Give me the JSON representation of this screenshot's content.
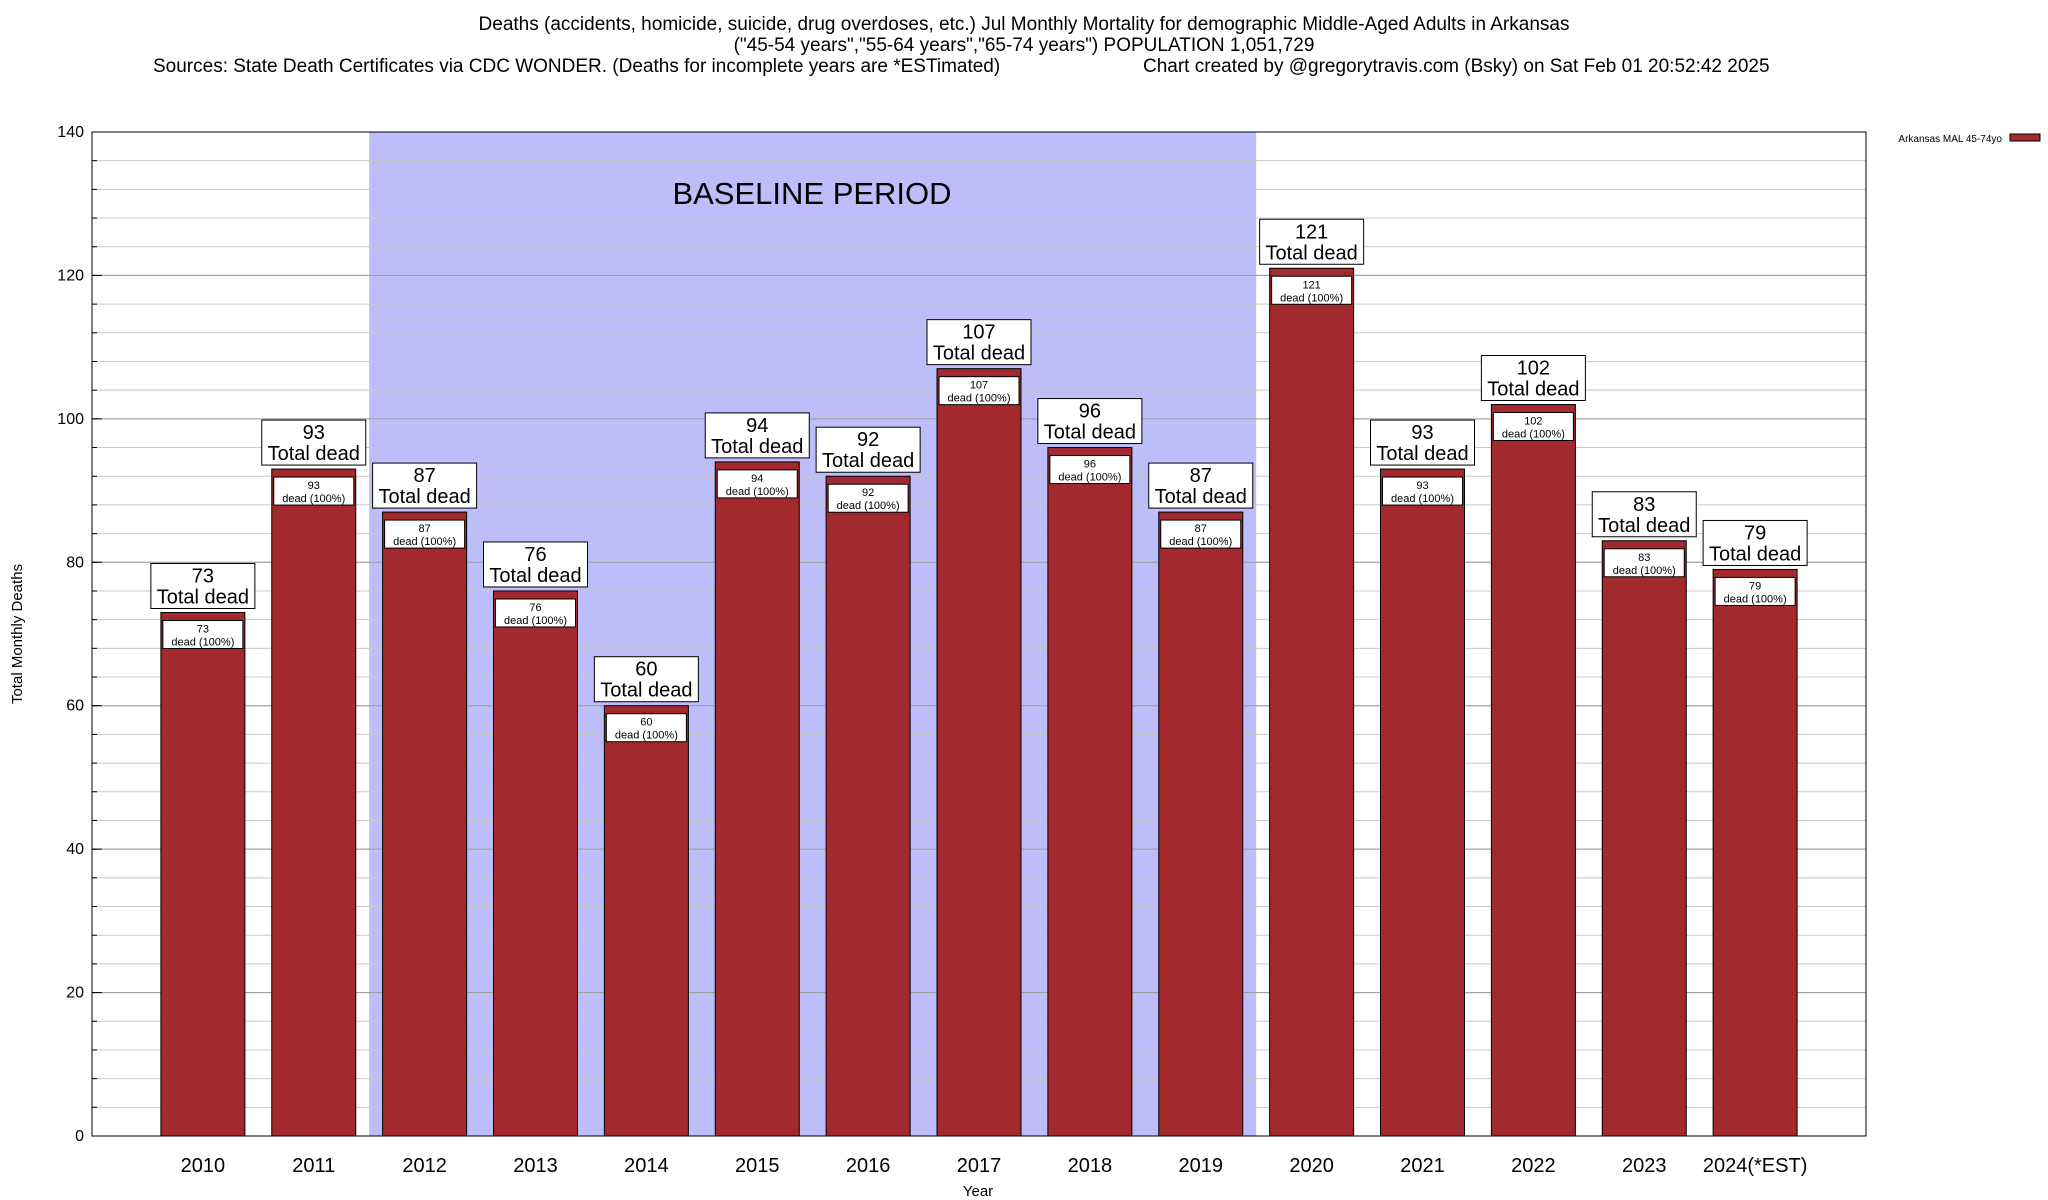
{
  "chart_data": {
    "type": "bar",
    "title": "Deaths (accidents, homicide, suicide, drug overdoses, etc.) Jul Monthly Mortality for demographic Middle-Aged Adults in Arkansas",
    "subtitle": "(\"45-54 years\",\"55-64 years\",\"65-74 years\") POPULATION 1,051,729",
    "source": "Sources: State Death Certificates via CDC WONDER. (Deaths for incomplete years are *ESTimated)",
    "credit": "Chart created by @gregorytravis.com (Bsky) on Sat Feb 01 20:52:42 2025",
    "xlabel": "Year",
    "ylabel": "Total Monthly Deaths",
    "ylim": [
      0,
      140
    ],
    "y_major_ticks": [
      0,
      20,
      40,
      60,
      80,
      100,
      120,
      140
    ],
    "y_minor_step": 4,
    "categories": [
      "2010",
      "2011",
      "2012",
      "2013",
      "2014",
      "2015",
      "2016",
      "2017",
      "2018",
      "2019",
      "2020",
      "2021",
      "2022",
      "2023",
      "2024(*EST)"
    ],
    "series": [
      {
        "name": "Arkansas MAL 45-74yo",
        "color": "#a2292d",
        "values": [
          73,
          93,
          87,
          76,
          60,
          94,
          92,
          107,
          96,
          87,
          121,
          93,
          102,
          83,
          79
        ]
      }
    ],
    "total_label_suffix": "Total dead",
    "inner_label_suffix": "dead (100%)",
    "baseline": {
      "label": "BASELINE PERIOD",
      "start_category": "2012",
      "end_category": "2019",
      "color": "#bdbdfa"
    },
    "legend_position": "top-right",
    "grid": true
  }
}
